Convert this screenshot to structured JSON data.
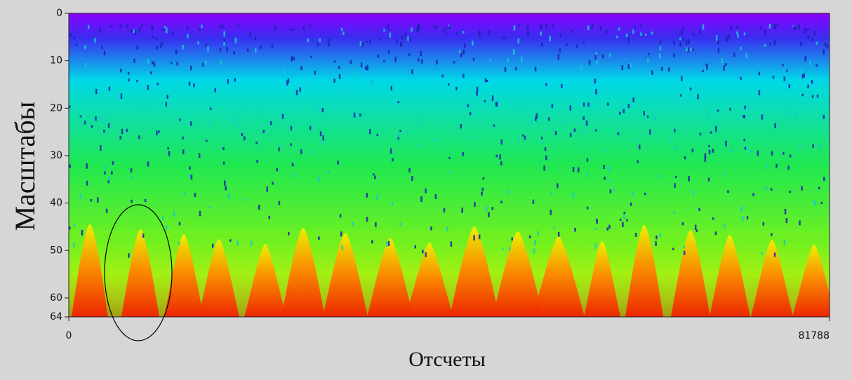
{
  "chart_data": {
    "type": "heatmap",
    "x_label": "Отсчеты",
    "y_label": "Масштабы",
    "xlim": [
      0,
      81788
    ],
    "xticks": [
      0,
      81788
    ],
    "ylim": [
      0,
      64
    ],
    "yticks": [
      0,
      10,
      20,
      30,
      40,
      50,
      60,
      64
    ],
    "y_inverted": true,
    "colorscale": [
      "#8a00ff",
      "#3a2cf0",
      "#00d8e8",
      "#20e850",
      "#70f020",
      "#f0f000",
      "#ff8a00",
      "#f02000"
    ]
  }
}
